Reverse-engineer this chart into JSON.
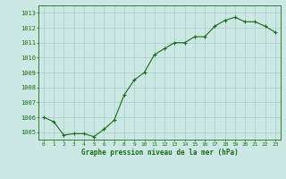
{
  "x": [
    0,
    1,
    2,
    3,
    4,
    5,
    6,
    7,
    8,
    9,
    10,
    11,
    12,
    13,
    14,
    15,
    16,
    17,
    18,
    19,
    20,
    21,
    22,
    23
  ],
  "y": [
    1006.0,
    1005.7,
    1004.8,
    1004.9,
    1004.9,
    1004.7,
    1005.2,
    1005.8,
    1007.5,
    1008.5,
    1009.0,
    1010.2,
    1010.6,
    1011.0,
    1011.0,
    1011.4,
    1011.4,
    1012.1,
    1012.5,
    1012.7,
    1012.4,
    1012.4,
    1012.1,
    1011.7
  ],
  "ylim": [
    1004.5,
    1013.5
  ],
  "yticks": [
    1005,
    1006,
    1007,
    1008,
    1009,
    1010,
    1011,
    1012,
    1013
  ],
  "xtick_labels": [
    "0",
    "1",
    "2",
    "3",
    "4",
    "5",
    "6",
    "7",
    "8",
    "9",
    "10",
    "11",
    "12",
    "13",
    "14",
    "15",
    "16",
    "17",
    "18",
    "19",
    "20",
    "21",
    "22",
    "23"
  ],
  "xlabel": "Graphe pression niveau de la mer (hPa)",
  "line_color": "#1a6b1a",
  "marker_color": "#1a6b1a",
  "bg_color": "#cce8e4",
  "grid_color": "#a8ccc8",
  "xlabel_color": "#1a6b1a",
  "tick_color": "#1a6b1a",
  "spine_color": "#1a6b1a"
}
